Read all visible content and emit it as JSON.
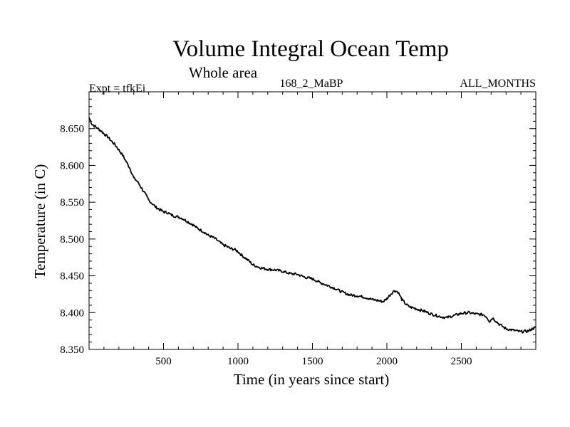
{
  "chart_data": {
    "type": "line",
    "title": "Volume Integral Ocean Temp",
    "subtitle": "Whole area",
    "header_left": "Expt = tfkEi",
    "header_center": "168_2_MaBP",
    "header_right": "ALL_MONTHS",
    "xlabel": "Time (in years since start)",
    "ylabel": "Temperature (in C)",
    "xlim": [
      0,
      3000
    ],
    "ylim": [
      8.35,
      8.7
    ],
    "xticks": [
      500,
      1000,
      1500,
      2000,
      2500
    ],
    "xtick_labels": [
      "500",
      "1000",
      "1500",
      "2000",
      "2500"
    ],
    "yticks": [
      8.35,
      8.4,
      8.45,
      8.5,
      8.55,
      8.6,
      8.65
    ],
    "ytick_labels": [
      "8.350",
      "8.400",
      "8.450",
      "8.500",
      "8.550",
      "8.600",
      "8.650"
    ],
    "grid": false,
    "legend": "none",
    "line_color": "#000000",
    "series": [
      {
        "x": [
          0,
          20,
          40,
          60,
          80,
          100,
          125,
          150,
          175,
          200,
          225,
          250,
          275,
          300,
          325,
          350,
          375,
          400,
          425,
          450,
          475,
          500,
          525,
          550,
          575,
          600,
          625,
          650,
          675,
          700,
          725,
          750,
          775,
          800,
          825,
          850,
          875,
          900,
          925,
          950,
          975,
          1000,
          1025,
          1050,
          1075,
          1100,
          1150,
          1200,
          1250,
          1300,
          1350,
          1400,
          1450,
          1500,
          1550,
          1600,
          1650,
          1700,
          1750,
          1800,
          1850,
          1900,
          1950,
          1975,
          2000,
          2025,
          2050,
          2075,
          2100,
          2125,
          2150,
          2200,
          2250,
          2300,
          2350,
          2400,
          2450,
          2500,
          2550,
          2600,
          2650,
          2670,
          2690,
          2710,
          2750,
          2800,
          2850,
          2900,
          2950,
          2975,
          3000
        ],
        "y": [
          8.665,
          8.656,
          8.653,
          8.65,
          8.647,
          8.643,
          8.639,
          8.633,
          8.628,
          8.621,
          8.614,
          8.605,
          8.596,
          8.583,
          8.578,
          8.57,
          8.562,
          8.553,
          8.548,
          8.543,
          8.54,
          8.537,
          8.536,
          8.533,
          8.531,
          8.53,
          8.528,
          8.525,
          8.522,
          8.519,
          8.515,
          8.512,
          8.509,
          8.505,
          8.503,
          8.5,
          8.496,
          8.492,
          8.49,
          8.487,
          8.486,
          8.483,
          8.478,
          8.474,
          8.47,
          8.465,
          8.461,
          8.459,
          8.458,
          8.456,
          8.453,
          8.452,
          8.448,
          8.446,
          8.441,
          8.437,
          8.433,
          8.428,
          8.424,
          8.423,
          8.421,
          8.418,
          8.416,
          8.415,
          8.419,
          8.425,
          8.43,
          8.428,
          8.418,
          8.412,
          8.408,
          8.405,
          8.402,
          8.398,
          8.395,
          8.393,
          8.396,
          8.399,
          8.4,
          8.398,
          8.397,
          8.394,
          8.388,
          8.393,
          8.385,
          8.378,
          8.376,
          8.374,
          8.375,
          8.378,
          8.38
        ]
      }
    ]
  }
}
